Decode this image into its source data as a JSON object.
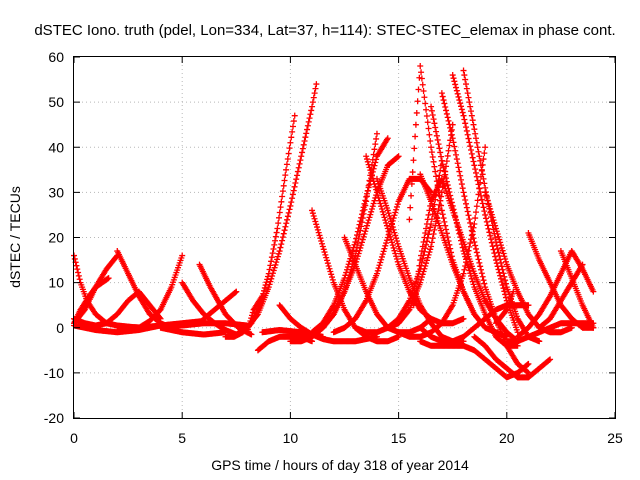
{
  "chart_data": {
    "type": "scatter",
    "title": "dSTEC Iono. truth (pdel, Lon=334, Lat=37, h=114): STEC-STEC_elemax in phase cont.",
    "xlabel": "GPS time / hours of day 318 of year 2014",
    "ylabel": "dSTEC  / TECUs",
    "xlim": [
      0,
      25
    ],
    "ylim": [
      -20,
      60
    ],
    "xticks": [
      0,
      5,
      10,
      15,
      20,
      25
    ],
    "yticks": [
      -20,
      -10,
      0,
      10,
      20,
      30,
      40,
      50,
      60
    ],
    "xtick_labels": [
      "0",
      "5",
      "10",
      "15",
      "20",
      "25"
    ],
    "ytick_labels": [
      "-20",
      "-10",
      "0",
      "10",
      "20",
      "30",
      "40",
      "50",
      "60"
    ],
    "grid": true,
    "marker": "+",
    "color": "#ff0000",
    "series": [
      {
        "x": [
          0.0,
          0.3,
          0.6,
          1.0,
          1.5,
          2.0,
          2.6,
          3.2
        ],
        "y": [
          16,
          10,
          6,
          3,
          1,
          0.5,
          0.2,
          0
        ]
      },
      {
        "x": [
          0.0,
          0.5,
          1.0,
          1.5,
          2.0,
          2.5,
          3.0,
          3.5,
          4.0
        ],
        "y": [
          2,
          1,
          0.5,
          1,
          3,
          6,
          8,
          5,
          2
        ]
      },
      {
        "x": [
          0.0,
          0.5,
          1.0,
          1.5,
          2.0
        ],
        "y": [
          1,
          4,
          9,
          13,
          16
        ]
      },
      {
        "x": [
          0.0,
          0.3,
          0.7,
          1.0,
          1.3,
          1.6
        ],
        "y": [
          1,
          4,
          7,
          9,
          10,
          11
        ]
      },
      {
        "x": [
          0.0,
          1.0,
          2.0,
          3.0,
          4.0,
          5.0,
          6.0
        ],
        "y": [
          0.5,
          -0.5,
          -1,
          -0.5,
          0.5,
          1,
          1.5
        ]
      },
      {
        "x": [
          2.0,
          2.5,
          3.0,
          3.5,
          4.0,
          4.5
        ],
        "y": [
          17,
          12,
          7,
          3,
          1,
          0
        ]
      },
      {
        "x": [
          2.0,
          3.0,
          4.0,
          5.0,
          6.0,
          7.0,
          8.0
        ],
        "y": [
          0,
          0,
          0.5,
          0.5,
          1,
          1,
          0.5
        ]
      },
      {
        "x": [
          3.0,
          3.5,
          4.0,
          4.5,
          5.0
        ],
        "y": [
          0,
          1.5,
          4,
          9,
          16
        ]
      },
      {
        "x": [
          4.0,
          5.0,
          6.0,
          7.0
        ],
        "y": [
          0,
          -1,
          -1.5,
          -1
        ]
      },
      {
        "x": [
          5.0,
          5.5,
          6.0,
          6.5,
          7.0,
          7.5
        ],
        "y": [
          10,
          6,
          3,
          1,
          -0.5,
          -1.5
        ]
      },
      {
        "x": [
          5.8,
          6.3,
          7.0,
          7.6,
          8.2
        ],
        "y": [
          14,
          9,
          3,
          0,
          -1.5
        ]
      },
      {
        "x": [
          6.0,
          6.5,
          7.0,
          7.5
        ],
        "y": [
          2,
          4,
          6,
          8
        ]
      },
      {
        "x": [
          7.0,
          7.4,
          7.8,
          8.2,
          8.6,
          9.0,
          9.4,
          9.8,
          10.2
        ],
        "y": [
          -2,
          -2,
          -1,
          1,
          5,
          12,
          22,
          35,
          47
        ]
      },
      {
        "x": [
          7.5,
          8.0,
          8.5,
          9.0,
          9.5,
          10.0,
          10.5,
          11.0,
          11.2
        ],
        "y": [
          -1.5,
          0,
          3,
          9,
          17,
          27,
          38,
          49,
          54
        ]
      },
      {
        "x": [
          8.0,
          8.3,
          8.7
        ],
        "y": [
          -1,
          4,
          7
        ]
      },
      {
        "x": [
          8.5,
          9.0,
          9.5,
          10.0,
          10.5,
          11.0
        ],
        "y": [
          -5,
          -3,
          -2,
          -2,
          -2,
          -3
        ]
      },
      {
        "x": [
          8.7,
          9.5,
          10.5,
          11.5
        ],
        "y": [
          -1,
          -0.5,
          -1,
          -2
        ]
      },
      {
        "x": [
          9.5,
          10.0,
          10.5,
          11.0,
          11.5,
          12.0,
          13.0,
          14.0
        ],
        "y": [
          5,
          2,
          0,
          -1.5,
          -2.5,
          -3,
          -3,
          -2
        ]
      },
      {
        "x": [
          10.0,
          10.5,
          11.0,
          11.5,
          12.0,
          12.5,
          13.0,
          13.5,
          14.0
        ],
        "y": [
          -3,
          -3,
          -2,
          0,
          3,
          8,
          16,
          28,
          43
        ]
      },
      {
        "x": [
          11.0,
          11.5,
          12.0,
          12.5,
          13.0,
          13.5,
          14.0,
          14.5
        ],
        "y": [
          -1,
          1,
          5,
          11,
          19,
          29,
          38,
          42
        ]
      },
      {
        "x": [
          11.0,
          11.5,
          12.0,
          12.5,
          13.0,
          13.5,
          14.0,
          14.5,
          15.0
        ],
        "y": [
          26,
          18,
          10,
          4,
          0,
          -2,
          -3,
          -3,
          -2
        ]
      },
      {
        "x": [
          11.5,
          12.0,
          12.5,
          13.0,
          13.5,
          14.0,
          14.5,
          15.0
        ],
        "y": [
          0,
          3,
          8,
          14,
          22,
          30,
          36,
          38
        ]
      },
      {
        "x": [
          12.0,
          12.5,
          13.0,
          13.5,
          14.0,
          14.5,
          15.0,
          15.5,
          16.0,
          16.5
        ],
        "y": [
          -1,
          0,
          2,
          6,
          12,
          20,
          28,
          33,
          33,
          30
        ]
      },
      {
        "x": [
          12.5,
          13.0,
          13.5,
          14.0,
          14.5,
          15.0,
          15.5,
          16.0,
          16.5
        ],
        "y": [
          20,
          14,
          8,
          3,
          0,
          -1,
          -1,
          0,
          2
        ]
      },
      {
        "x": [
          13.0,
          13.5,
          14.0,
          14.5,
          15.0,
          15.5,
          16.0,
          16.5,
          17.0
        ],
        "y": [
          0,
          -1,
          -1,
          0,
          2,
          6,
          13,
          23,
          37
        ]
      },
      {
        "x": [
          13.5,
          14.0,
          14.5,
          15.0,
          15.5,
          16.0,
          16.5,
          17.0,
          17.5,
          18.0
        ],
        "y": [
          38,
          30,
          22,
          14,
          8,
          4,
          2,
          1,
          1,
          2
        ]
      },
      {
        "x": [
          14.0,
          14.5,
          15.0,
          15.5,
          16.0,
          16.5,
          17.0,
          17.5,
          18.0
        ],
        "y": [
          33,
          26,
          18,
          11,
          5,
          1,
          -2,
          -3,
          -3
        ]
      },
      {
        "x": [
          14.5,
          15.0,
          15.5,
          16.0,
          16.5,
          17.0,
          17.5
        ],
        "y": [
          0,
          1,
          4,
          10,
          18,
          30,
          45
        ]
      },
      {
        "x": [
          15.0,
          15.5,
          16.0,
          16.5,
          17.0,
          17.5,
          18.0,
          18.5,
          19.0
        ],
        "y": [
          -1,
          -2,
          -2,
          -1,
          1,
          5,
          12,
          23,
          40
        ]
      },
      {
        "x": [
          15.5,
          15.8,
          16.0,
          16.5,
          17.0,
          17.5,
          18.0,
          18.5
        ],
        "y": [
          24,
          45,
          58,
          40,
          26,
          15,
          8,
          3
        ]
      },
      {
        "x": [
          15.7,
          16.0,
          16.5,
          17.0,
          17.5,
          18.0,
          18.5,
          19.0,
          19.5,
          20.0,
          20.5
        ],
        "y": [
          5,
          15,
          28,
          33,
          26,
          19,
          12,
          6,
          2,
          -1,
          -3
        ]
      },
      {
        "x": [
          16.0,
          16.5,
          17.0,
          17.5,
          18.0,
          18.5,
          19.0,
          19.5,
          20.0,
          20.5,
          21.0
        ],
        "y": [
          0,
          -2,
          -3,
          -3,
          -2,
          0,
          2,
          4,
          5,
          5,
          5
        ]
      },
      {
        "x": [
          16.0,
          16.5,
          17.0,
          17.5,
          18.0,
          18.5,
          19.0,
          19.5,
          20.0
        ],
        "y": [
          34,
          28,
          21,
          14,
          8,
          3,
          0,
          -1,
          -2
        ]
      },
      {
        "x": [
          16.5,
          17.0,
          17.5,
          18.0,
          18.5,
          19.0,
          19.5,
          20.0,
          20.5
        ],
        "y": [
          49,
          37,
          27,
          17,
          9,
          3,
          -2,
          -4,
          -4
        ]
      },
      {
        "x": [
          16.0,
          16.5,
          17.0,
          17.5,
          18.0,
          18.5,
          19.0,
          19.5,
          20.0,
          20.5,
          21.0
        ],
        "y": [
          -3,
          -4,
          -4,
          -4,
          -4,
          -5,
          -7,
          -9,
          -11,
          -10,
          -8
        ]
      },
      {
        "x": [
          17.0,
          17.5,
          18.0,
          18.5,
          19.0,
          19.5,
          20.0,
          20.5,
          21.0
        ],
        "y": [
          52,
          42,
          30,
          19,
          9,
          2,
          -4,
          -8,
          -10
        ]
      },
      {
        "x": [
          17.5,
          18.0,
          18.5,
          19.0,
          19.5,
          20.0,
          20.5
        ],
        "y": [
          56,
          47,
          36,
          25,
          15,
          6,
          -1
        ]
      },
      {
        "x": [
          18.0,
          18.5,
          19.0,
          19.5,
          20.0,
          20.5,
          21.0,
          21.5
        ],
        "y": [
          57,
          44,
          31,
          19,
          9,
          2,
          -2,
          -3
        ]
      },
      {
        "x": [
          18.5,
          19.0,
          19.5,
          20.0,
          20.5,
          21.0,
          21.5,
          22.0
        ],
        "y": [
          -2,
          -4,
          -7,
          -9,
          -11,
          -11,
          -9,
          -7
        ]
      },
      {
        "x": [
          19.0,
          19.5,
          20.0,
          20.5,
          21.0,
          21.5,
          22.0,
          22.5,
          23.0
        ],
        "y": [
          30,
          22,
          14,
          8,
          3,
          0,
          -1,
          -1,
          0
        ]
      },
      {
        "x": [
          19.5,
          20.0,
          20.3
        ],
        "y": [
          1,
          4,
          8
        ]
      },
      {
        "x": [
          20.0,
          20.5,
          21.0,
          21.5,
          22.0,
          22.5,
          23.0,
          23.5,
          24.0
        ],
        "y": [
          -3,
          -3,
          -2,
          -1,
          0,
          1,
          1,
          1,
          1
        ]
      },
      {
        "x": [
          20.5,
          21.0,
          21.5,
          22.0,
          22.5,
          23.0,
          23.5,
          24.0
        ],
        "y": [
          -2,
          0,
          3,
          7,
          12,
          17,
          13,
          8
        ]
      },
      {
        "x": [
          21.0,
          21.5,
          22.0,
          22.5,
          23.0,
          23.5,
          24.0
        ],
        "y": [
          21,
          15,
          10,
          5,
          2,
          0,
          0
        ]
      },
      {
        "x": [
          21.5,
          22.0,
          22.5,
          23.0,
          23.5
        ],
        "y": [
          0,
          2,
          6,
          10,
          14
        ]
      },
      {
        "x": [
          22.5,
          23.0,
          23.5,
          24.0
        ],
        "y": [
          17,
          11,
          5,
          0
        ]
      }
    ]
  }
}
